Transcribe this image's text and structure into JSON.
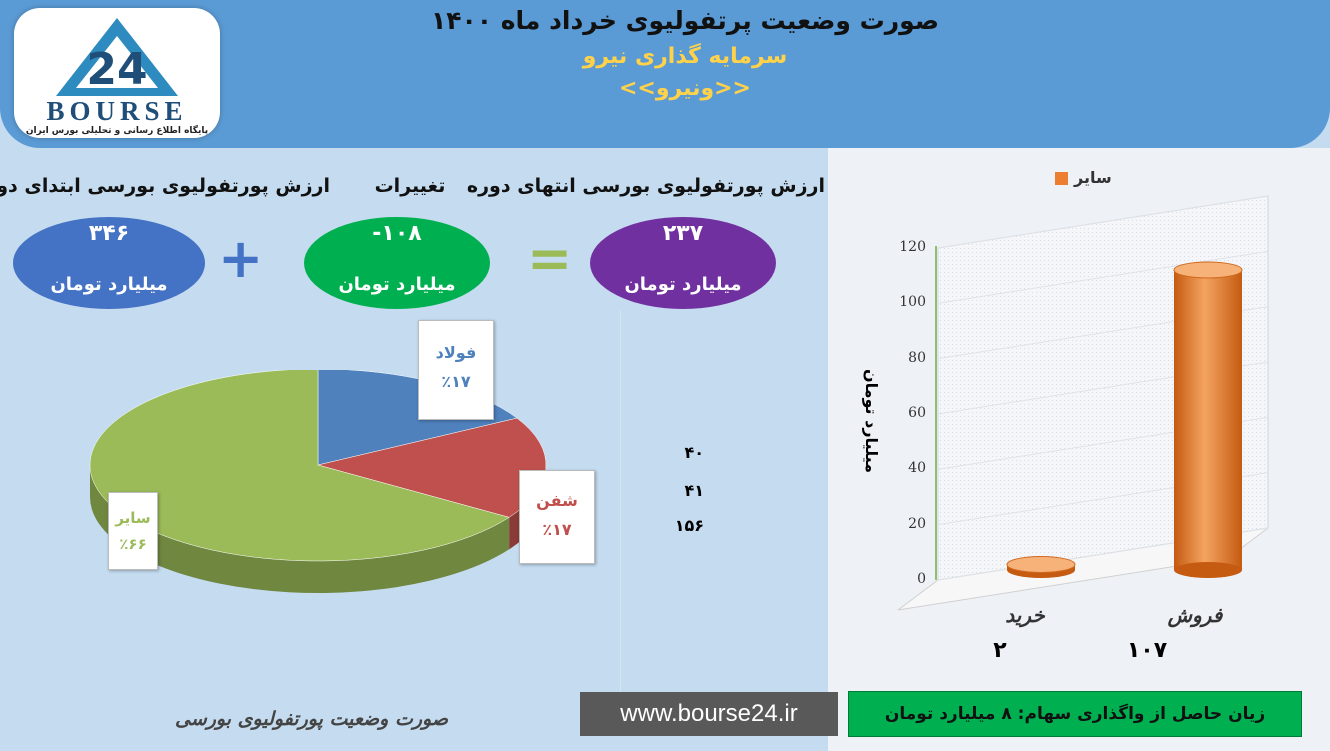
{
  "header": {
    "title": "صورت وضعیت پرتفولیوی خرداد ماه ۱۴۰۰",
    "subtitle": "سرمایه گذاری نیرو",
    "symbol": "<<ونیرو>>"
  },
  "logo": {
    "word": "BOURSE",
    "caption": "پایگاه اطلاع رسانی و تحلیلی بورس ایران"
  },
  "summary": {
    "start_label": "ارزش پورتفولیوی بورسی ابتدای دوره",
    "start_value": "۳۴۶",
    "change_label": "تغییرات",
    "change_value": "-۱۰۸",
    "end_label": "ارزش پورتفولیوی بورسی انتهای دوره",
    "end_value": "۲۳۷",
    "unit": "میلیارد تومان",
    "plus_sign": "+",
    "equals_sign": "="
  },
  "pie_values": [
    "۴۰",
    "۴۱",
    "۱۵۶"
  ],
  "colors": {
    "blue": "#4472c4",
    "green": "#00b050",
    "purple": "#7030a0",
    "orange": "#ed7d31",
    "header": "#5b9bd5"
  },
  "chart_data": [
    {
      "type": "pie",
      "title": "",
      "slices": [
        {
          "label": "فولاد",
          "value": 40,
          "percent_label": "٪۱۷",
          "color": "#4f81bd"
        },
        {
          "label": "شفن",
          "value": 41,
          "percent_label": "٪۱۷",
          "color": "#c0504d"
        },
        {
          "label": "سایر",
          "value": 156,
          "percent_label": "٪۶۶",
          "color": "#9bbb59"
        }
      ]
    },
    {
      "type": "bar",
      "title": "",
      "categories": [
        "خرید",
        "فروش"
      ],
      "series": [
        {
          "name": "سایر",
          "values": [
            2,
            107
          ],
          "color": "#ed7d31"
        }
      ],
      "value_labels": [
        "۲",
        "۱۰۷"
      ],
      "ylabel": "میلیارد تومان",
      "xlabel": "",
      "ylim": [
        0,
        120
      ],
      "yticks": [
        0,
        20,
        40,
        60,
        80,
        100,
        120
      ],
      "grid": true,
      "legend": "top"
    }
  ],
  "footer": {
    "title": "صورت وضعیت پورتفولیوی بورسی",
    "url": "www.bourse24.ir",
    "loss": "زیان حاصل از واگذاری سهام: ۸ میلیارد تومان"
  }
}
